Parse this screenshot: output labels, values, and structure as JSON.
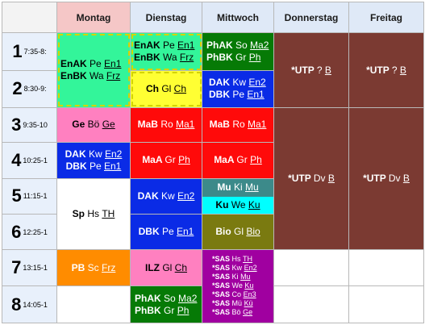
{
  "days": [
    {
      "label": "Montag",
      "today": true
    },
    {
      "label": "Dienstag",
      "today": false
    },
    {
      "label": "Mittwoch",
      "today": false
    },
    {
      "label": "Donnerstag",
      "today": false
    },
    {
      "label": "Freitag",
      "today": false
    }
  ],
  "periods": [
    {
      "num": "1",
      "time": "7:35-8:"
    },
    {
      "num": "2",
      "time": "8:30-9:"
    },
    {
      "num": "3",
      "time": "9:35-10"
    },
    {
      "num": "4",
      "time": "10:25-1"
    },
    {
      "num": "5",
      "time": "11:15-1"
    },
    {
      "num": "6",
      "time": "12:25-1"
    },
    {
      "num": "7",
      "time": "13:15-1"
    },
    {
      "num": "8",
      "time": "14:05-1"
    }
  ],
  "lessons": {
    "mo_1_2": [
      [
        "EnAK",
        "Pe",
        "En1"
      ],
      [
        "EnBK",
        "Wa",
        "Frz"
      ]
    ],
    "di_1": [
      [
        "EnAK",
        "Pe",
        "En1"
      ],
      [
        "EnBK",
        "Wa",
        "Frz"
      ]
    ],
    "di_2": [
      [
        "Ch",
        "Gl",
        "Ch"
      ]
    ],
    "mi_1": [
      [
        "PhAK",
        "So",
        "Ma2"
      ],
      [
        "PhBK",
        "Gr",
        "Ph"
      ]
    ],
    "mi_2": [
      [
        "DAK",
        "Kw",
        "En2"
      ],
      [
        "DBK",
        "Pe",
        "En1"
      ]
    ],
    "do_1_2": [
      [
        "*UTP",
        "?",
        "B"
      ]
    ],
    "fr_1_2": [
      [
        "*UTP",
        "?",
        "B"
      ]
    ],
    "mo_3": [
      [
        "Ge",
        "Bö",
        "Ge"
      ]
    ],
    "di_3": [
      [
        "MaB",
        "Ro",
        "Ma1"
      ]
    ],
    "mi_3": [
      [
        "MaB",
        "Ro",
        "Ma1"
      ]
    ],
    "mo_4": [
      [
        "DAK",
        "Kw",
        "En2"
      ],
      [
        "DBK",
        "Pe",
        "En1"
      ]
    ],
    "di_4": [
      [
        "MaA",
        "Gr",
        "Ph"
      ]
    ],
    "mi_4": [
      [
        "MaA",
        "Gr",
        "Ph"
      ]
    ],
    "do_3_6": [
      [
        "*UTP",
        "Dv",
        "B"
      ]
    ],
    "fr_3_6": [
      [
        "*UTP",
        "Dv",
        "B"
      ]
    ],
    "mo_5_6": [
      [
        "Sp",
        "Hs",
        "TH"
      ]
    ],
    "di_5": [
      [
        "DAK",
        "Kw",
        "En2"
      ]
    ],
    "di_6": [
      [
        "DBK",
        "Pe",
        "En1"
      ]
    ],
    "mi_5a": [
      [
        "Mu",
        "Ki",
        "Mu"
      ]
    ],
    "mi_5b": [
      [
        "Ku",
        "We",
        "Ku"
      ]
    ],
    "mi_6": [
      [
        "Bio",
        "Gl",
        "Bio"
      ]
    ],
    "mo_7": [
      [
        "PB",
        "Sc",
        "Frz"
      ]
    ],
    "di_7": [
      [
        "ILZ",
        "Gl",
        "Ch"
      ]
    ],
    "di_8": [
      [
        "PhAK",
        "So",
        "Ma2"
      ],
      [
        "PhBK",
        "Gr",
        "Ph"
      ]
    ],
    "mi_7_8": [
      [
        "*SAS",
        "Hs",
        "TH"
      ],
      [
        "*SAS",
        "Kw",
        "En2"
      ],
      [
        "*SAS",
        "Ki",
        "Mu"
      ],
      [
        "*SAS",
        "We",
        "Ku"
      ],
      [
        "*SAS",
        "Co",
        "En3"
      ],
      [
        "*SAS",
        "Mü",
        "Kü"
      ],
      [
        "*SAS",
        "Bö",
        "Ge"
      ]
    ]
  },
  "colors": {
    "mo_1_2": "#33f59a",
    "di_1": "#33f59a",
    "di_2": "#ffff33",
    "mi_1": "#067a06",
    "mi_2": "#0a2be6",
    "utp": "#7b3a32",
    "mo_3": "#ff80c0",
    "di_3": "#ff0a0a",
    "mi_3": "#ff0a0a",
    "mo_4": "#0a2be6",
    "di_4": "#ff0a0a",
    "mi_4": "#ff0a0a",
    "mo_5_6": "#ffffff",
    "di_5": "#0a2be6",
    "di_6": "#0a2be6",
    "mi_5a": "#3c8a8a",
    "mi_5b": "#00ffff",
    "mi_6": "#7a7a10",
    "mo_7": "#ff8c00",
    "di_7": "#ff80c0",
    "di_8": "#067a06",
    "mi_7_8": "#a000a0"
  }
}
